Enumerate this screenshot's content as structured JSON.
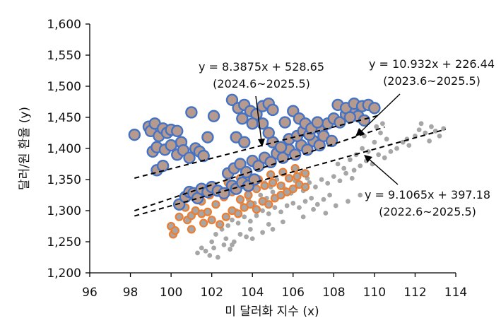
{
  "chart_data": {
    "type": "scatter",
    "xlabel": "미 달러화 지수 (x)",
    "ylabel": "달러/원 환율 (y)",
    "xlim": [
      96,
      114
    ],
    "ylim": [
      1200,
      1600
    ],
    "xticks": [
      "96",
      "98",
      "100",
      "102",
      "104",
      "106",
      "108",
      "110",
      "112",
      "114"
    ],
    "yticks": [
      "1,200",
      "1,250",
      "1,300",
      "1,350",
      "1,400",
      "1,450",
      "1,500",
      "1,550",
      "1,600"
    ],
    "grid": false,
    "legend": "none",
    "colors": {
      "grey": "#a6a6a6",
      "orange": "#ed7d31",
      "blue": "#4472c4",
      "blue_fill": "#b79a8e"
    },
    "series": [
      {
        "period": "2022.6~2025.5",
        "style": "grey",
        "points": [
          [
            101.7,
            1235
          ],
          [
            101.9,
            1228
          ],
          [
            102.1,
            1240
          ],
          [
            102.3,
            1225
          ],
          [
            102.6,
            1245
          ],
          [
            102.9,
            1238
          ],
          [
            103.1,
            1250
          ],
          [
            103.4,
            1262
          ],
          [
            103.7,
            1258
          ],
          [
            103.9,
            1270
          ],
          [
            102.2,
            1262
          ],
          [
            102.5,
            1270
          ],
          [
            102.8,
            1276
          ],
          [
            103.0,
            1285
          ],
          [
            103.3,
            1280
          ],
          [
            103.6,
            1290
          ],
          [
            103.9,
            1283
          ],
          [
            104.2,
            1292
          ],
          [
            104.5,
            1300
          ],
          [
            104.8,
            1295
          ],
          [
            105.1,
            1305
          ],
          [
            105.4,
            1298
          ],
          [
            105.7,
            1308
          ],
          [
            106.0,
            1312
          ],
          [
            106.3,
            1305
          ],
          [
            106.6,
            1315
          ],
          [
            106.9,
            1320
          ],
          [
            107.2,
            1310
          ],
          [
            107.5,
            1318
          ],
          [
            107.8,
            1325
          ],
          [
            103.2,
            1300
          ],
          [
            103.5,
            1310
          ],
          [
            103.8,
            1318
          ],
          [
            104.1,
            1312
          ],
          [
            104.4,
            1325
          ],
          [
            104.7,
            1320
          ],
          [
            105.0,
            1330
          ],
          [
            105.3,
            1322
          ],
          [
            105.6,
            1335
          ],
          [
            105.9,
            1328
          ],
          [
            106.2,
            1340
          ],
          [
            106.5,
            1332
          ],
          [
            106.8,
            1345
          ],
          [
            107.1,
            1338
          ],
          [
            107.4,
            1350
          ],
          [
            107.7,
            1344
          ],
          [
            108.0,
            1355
          ],
          [
            108.3,
            1348
          ],
          [
            108.6,
            1360
          ],
          [
            108.9,
            1352
          ],
          [
            104.0,
            1340
          ],
          [
            104.3,
            1335
          ],
          [
            104.6,
            1345
          ],
          [
            104.9,
            1338
          ],
          [
            105.2,
            1350
          ],
          [
            105.5,
            1342
          ],
          [
            105.8,
            1355
          ],
          [
            106.1,
            1348
          ],
          [
            106.4,
            1360
          ],
          [
            106.7,
            1352
          ],
          [
            109.0,
            1365
          ],
          [
            109.3,
            1372
          ],
          [
            109.6,
            1380
          ],
          [
            109.9,
            1375
          ],
          [
            110.2,
            1390
          ],
          [
            110.5,
            1385
          ],
          [
            110.8,
            1395
          ],
          [
            111.1,
            1400
          ],
          [
            111.4,
            1410
          ],
          [
            111.7,
            1405
          ],
          [
            112.0,
            1420
          ],
          [
            112.2,
            1430
          ],
          [
            112.5,
            1425
          ],
          [
            112.8,
            1435
          ],
          [
            113.0,
            1428
          ],
          [
            113.2,
            1420
          ],
          [
            113.4,
            1432
          ],
          [
            111.6,
            1415
          ],
          [
            112.3,
            1440
          ],
          [
            112.7,
            1412
          ],
          [
            108.2,
            1375
          ],
          [
            108.5,
            1368
          ],
          [
            108.8,
            1382
          ],
          [
            109.1,
            1390
          ],
          [
            109.4,
            1400
          ],
          [
            109.7,
            1395
          ],
          [
            110.0,
            1410
          ],
          [
            109.5,
            1420
          ],
          [
            110.3,
            1425
          ],
          [
            110.6,
            1415
          ],
          [
            109.2,
            1445
          ],
          [
            109.6,
            1440
          ],
          [
            110.1,
            1435
          ],
          [
            110.4,
            1440
          ],
          [
            106.5,
            1290
          ],
          [
            107.0,
            1302
          ],
          [
            107.6,
            1296
          ],
          [
            108.1,
            1308
          ],
          [
            108.7,
            1315
          ],
          [
            109.3,
            1325
          ],
          [
            105.0,
            1270
          ],
          [
            105.5,
            1282
          ],
          [
            104.5,
            1265
          ],
          [
            104.0,
            1255
          ],
          [
            103.0,
            1245
          ],
          [
            102.0,
            1250
          ],
          [
            101.5,
            1240
          ],
          [
            101.3,
            1232
          ],
          [
            102.7,
            1255
          ],
          [
            104.8,
            1278
          ]
        ]
      },
      {
        "period": "2023.6~2025.5",
        "style": "orange",
        "points": [
          [
            100.0,
            1275
          ],
          [
            100.1,
            1262
          ],
          [
            100.2,
            1268
          ],
          [
            100.8,
            1285
          ],
          [
            101.0,
            1292
          ],
          [
            101.2,
            1300
          ],
          [
            101.5,
            1295
          ],
          [
            101.8,
            1298
          ],
          [
            102.0,
            1285
          ],
          [
            102.4,
            1278
          ],
          [
            102.7,
            1290
          ],
          [
            103.0,
            1300
          ],
          [
            103.3,
            1295
          ],
          [
            103.6,
            1305
          ],
          [
            103.9,
            1310
          ],
          [
            104.2,
            1302
          ],
          [
            104.5,
            1315
          ],
          [
            104.8,
            1310
          ],
          [
            105.1,
            1320
          ],
          [
            105.4,
            1325
          ],
          [
            105.7,
            1330
          ],
          [
            106.0,
            1335
          ],
          [
            106.3,
            1342
          ],
          [
            106.6,
            1338
          ],
          [
            102.2,
            1310
          ],
          [
            102.6,
            1322
          ],
          [
            103.0,
            1330
          ],
          [
            103.4,
            1318
          ],
          [
            103.8,
            1325
          ],
          [
            104.2,
            1335
          ],
          [
            104.6,
            1340
          ],
          [
            105.0,
            1345
          ],
          [
            105.4,
            1340
          ],
          [
            105.8,
            1352
          ],
          [
            106.2,
            1355
          ],
          [
            106.6,
            1360
          ],
          [
            101.5,
            1315
          ],
          [
            101.9,
            1325
          ],
          [
            100.7,
            1305
          ],
          [
            100.4,
            1290
          ],
          [
            104.3,
            1350
          ],
          [
            104.9,
            1358
          ],
          [
            105.5,
            1362
          ],
          [
            106.1,
            1368
          ],
          [
            102.0,
            1340
          ],
          [
            102.8,
            1345
          ],
          [
            103.4,
            1352
          ],
          [
            103.9,
            1348
          ],
          [
            101.0,
            1270
          ],
          [
            101.6,
            1280
          ]
        ]
      },
      {
        "period": "2024.6~2025.5",
        "style": "blue",
        "points": [
          [
            98.2,
            1422
          ],
          [
            98.9,
            1435
          ],
          [
            99.0,
            1428
          ],
          [
            99.2,
            1440
          ],
          [
            99.4,
            1420
          ],
          [
            99.6,
            1432
          ],
          [
            99.8,
            1425
          ],
          [
            100.0,
            1430
          ],
          [
            100.3,
            1428
          ],
          [
            100.5,
            1410
          ],
          [
            99.1,
            1395
          ],
          [
            99.3,
            1402
          ],
          [
            99.7,
            1398
          ],
          [
            100.0,
            1405
          ],
          [
            100.3,
            1390
          ],
          [
            100.6,
            1397
          ],
          [
            100.9,
            1385
          ],
          [
            101.2,
            1400
          ],
          [
            101.4,
            1395
          ],
          [
            101.6,
            1388
          ],
          [
            99.3,
            1365
          ],
          [
            99.6,
            1372
          ],
          [
            101.0,
            1458
          ],
          [
            102.1,
            1452
          ],
          [
            101.8,
            1418
          ],
          [
            100.4,
            1310
          ],
          [
            100.7,
            1322
          ],
          [
            100.9,
            1330
          ],
          [
            101.1,
            1328
          ],
          [
            101.3,
            1320
          ],
          [
            101.5,
            1335
          ],
          [
            101.8,
            1330
          ],
          [
            102.0,
            1338
          ],
          [
            102.3,
            1332
          ],
          [
            102.6,
            1328
          ],
          [
            103.0,
            1340
          ],
          [
            103.2,
            1335
          ],
          [
            103.5,
            1345
          ],
          [
            103.8,
            1340
          ],
          [
            104.1,
            1350
          ],
          [
            102.8,
            1360
          ],
          [
            103.1,
            1368
          ],
          [
            103.4,
            1375
          ],
          [
            103.7,
            1362
          ],
          [
            104.0,
            1380
          ],
          [
            104.3,
            1372
          ],
          [
            104.6,
            1385
          ],
          [
            104.9,
            1378
          ],
          [
            105.2,
            1392
          ],
          [
            105.5,
            1385
          ],
          [
            105.8,
            1398
          ],
          [
            106.1,
            1390
          ],
          [
            106.4,
            1405
          ],
          [
            106.7,
            1398
          ],
          [
            107.0,
            1412
          ],
          [
            107.3,
            1405
          ],
          [
            105.0,
            1410
          ],
          [
            105.4,
            1402
          ],
          [
            105.8,
            1415
          ],
          [
            106.2,
            1420
          ],
          [
            106.5,
            1428
          ],
          [
            106.8,
            1422
          ],
          [
            107.1,
            1435
          ],
          [
            107.4,
            1430
          ],
          [
            107.7,
            1440
          ],
          [
            108.0,
            1448
          ],
          [
            108.3,
            1442
          ],
          [
            108.6,
            1455
          ],
          [
            108.9,
            1460
          ],
          [
            109.2,
            1452
          ],
          [
            108.2,
            1470
          ],
          [
            108.6,
            1465
          ],
          [
            109.0,
            1472
          ],
          [
            109.4,
            1468
          ],
          [
            109.7,
            1470
          ],
          [
            110.0,
            1465
          ],
          [
            108.8,
            1450
          ],
          [
            109.5,
            1445
          ],
          [
            107.5,
            1420
          ],
          [
            107.9,
            1412
          ],
          [
            103.0,
            1478
          ],
          [
            103.3,
            1465
          ],
          [
            103.6,
            1470
          ],
          [
            103.9,
            1460
          ],
          [
            104.2,
            1455
          ],
          [
            104.5,
            1468
          ],
          [
            104.8,
            1472
          ],
          [
            105.0,
            1462
          ],
          [
            103.5,
            1448
          ],
          [
            104.0,
            1440
          ],
          [
            106.0,
            1460
          ],
          [
            106.3,
            1448
          ],
          [
            106.6,
            1440
          ],
          [
            106.9,
            1432
          ],
          [
            107.2,
            1442
          ],
          [
            105.6,
            1442
          ],
          [
            104.5,
            1440
          ],
          [
            104.8,
            1425
          ],
          [
            103.2,
            1418
          ],
          [
            103.6,
            1410
          ]
        ]
      }
    ],
    "trendlines": [
      {
        "equation": "y = 8.3875x + 528.65",
        "period": "(2024.6~2025.5)",
        "slope": 8.3875,
        "intercept": 528.65,
        "x_range": [
          98.2,
          110.2
        ]
      },
      {
        "equation": "y = 10.932x + 226.44",
        "period": "(2023.6~2025.5)",
        "slope": 10.932,
        "intercept": 226.44,
        "x_range": [
          98.2,
          110.5
        ]
      },
      {
        "equation": "y = 9.1065x + 397.18",
        "period": "(2022.6~2025.5)",
        "slope": 9.1065,
        "intercept": 397.18,
        "x_range": [
          98.2,
          113.5
        ]
      }
    ]
  }
}
